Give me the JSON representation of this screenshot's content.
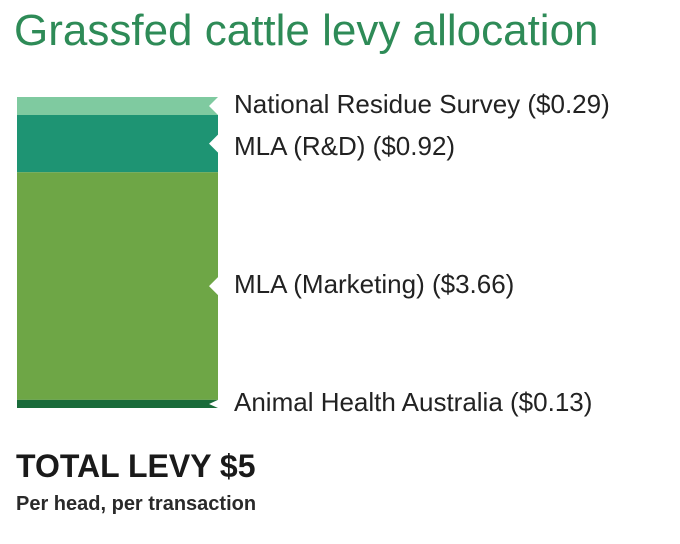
{
  "chart_data": {
    "type": "stacked-bar",
    "title": "Grassfed cattle levy allocation",
    "unit": "$",
    "segments": [
      {
        "label": "National Residue Survey ($0.29)",
        "name": "National Residue Survey",
        "value": 0.29,
        "color": "#7fcaa0"
      },
      {
        "label": "MLA (R&D) ($0.92)",
        "name": "MLA (R&D)",
        "value": 0.92,
        "color": "#1e9473"
      },
      {
        "label": "MLA (Marketing) ($3.66)",
        "name": "MLA (Marketing)",
        "value": 3.66,
        "color": "#6ea646"
      },
      {
        "label": "Animal Health Australia ($0.13)",
        "name": "Animal Health Australia",
        "value": 0.13,
        "color": "#1a6b3a"
      }
    ],
    "total_label": "TOTAL LEVY $5",
    "total_value": 5,
    "subtitle": "Per head, per transaction"
  }
}
